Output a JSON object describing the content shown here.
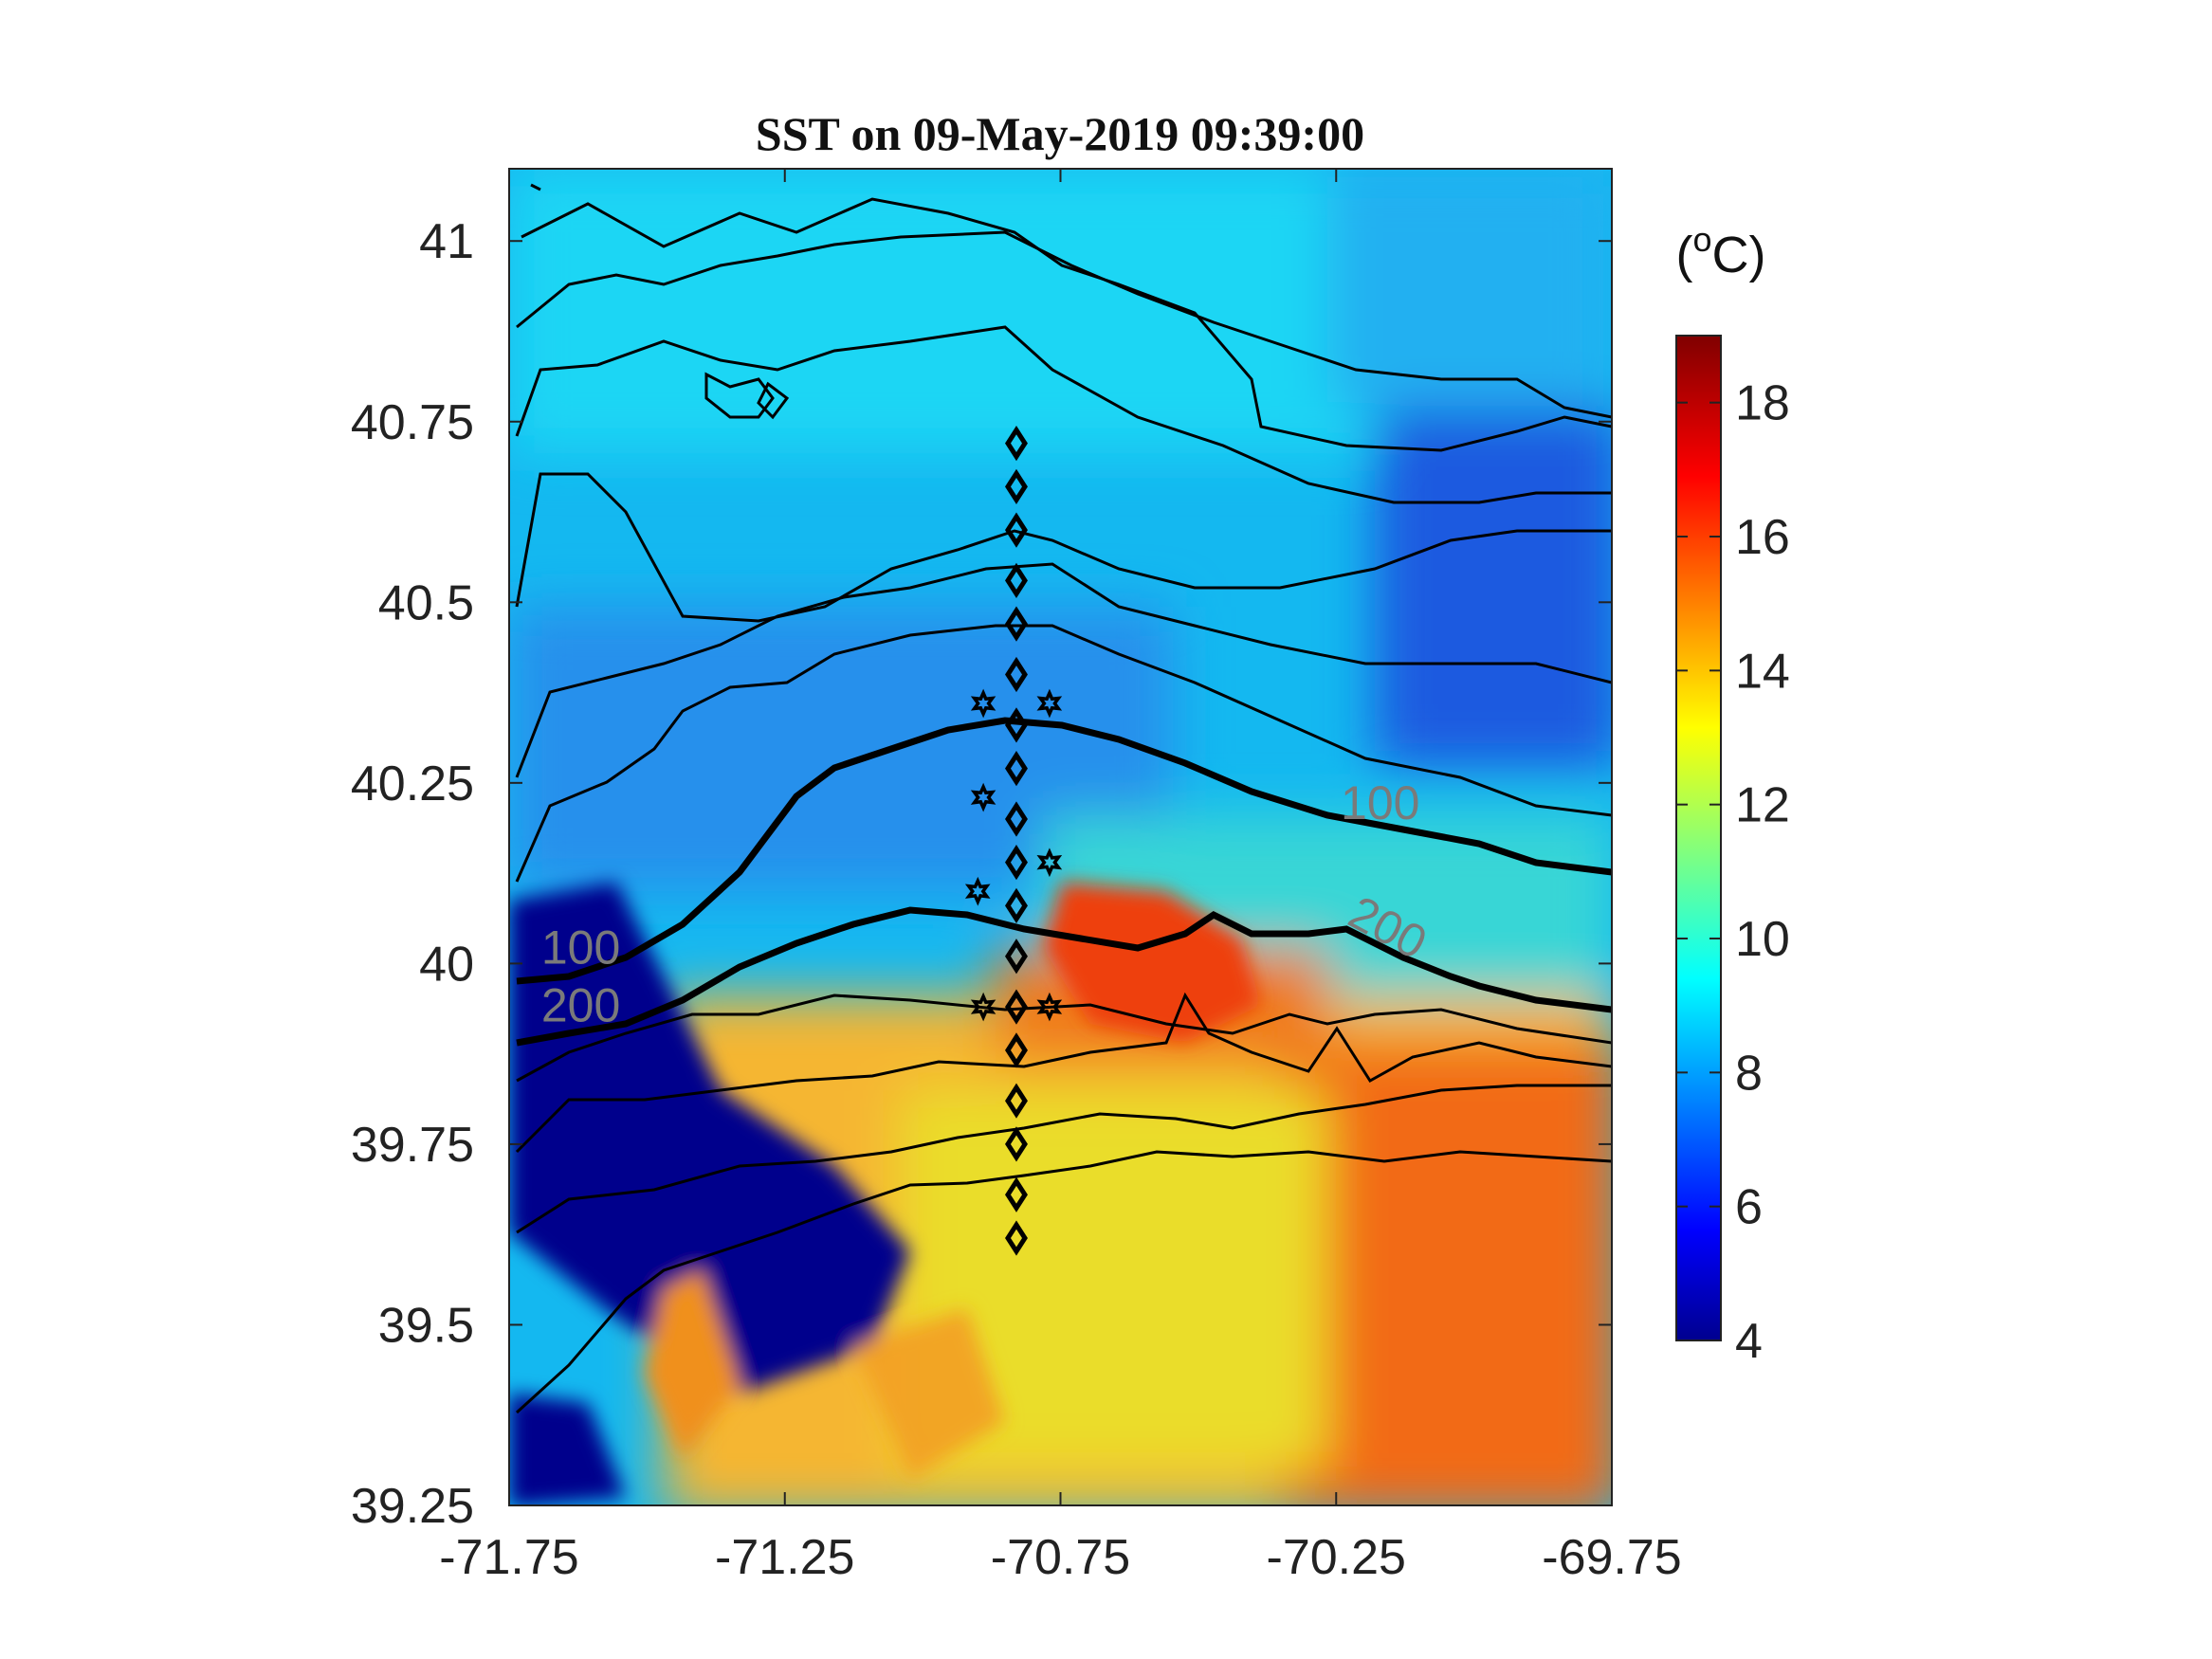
{
  "map": {
    "title": "SST on 09-May-2019 09:39:00",
    "x_ticks": [
      "-71.75",
      "-71.25",
      "-70.75",
      "-70.25",
      "-69.75"
    ],
    "y_ticks": [
      "39.25",
      "39.5",
      "39.75",
      "40",
      "40.25",
      "40.5",
      "40.75",
      "41"
    ],
    "xlim": [
      -71.75,
      -69.75
    ],
    "ylim": [
      39.25,
      41.1
    ]
  },
  "colorbar": {
    "unit_label": "(°C)",
    "ticks": [
      "4",
      "6",
      "8",
      "10",
      "12",
      "14",
      "16",
      "18"
    ],
    "range": [
      4,
      19
    ],
    "colormap": "jet"
  },
  "isobaths": {
    "labels": [
      {
        "text": "100",
        "lon": -71.62,
        "lat": 40.0
      },
      {
        "text": "200",
        "lon": -71.62,
        "lat": 39.92
      },
      {
        "text": "100",
        "lon": -70.17,
        "lat": 40.2
      },
      {
        "text": "200",
        "lon": -70.17,
        "lat": 40.03
      }
    ]
  },
  "stations": {
    "diamonds": [
      {
        "lon": -70.83,
        "lat": 40.72
      },
      {
        "lon": -70.83,
        "lat": 40.66
      },
      {
        "lon": -70.83,
        "lat": 40.6
      },
      {
        "lon": -70.83,
        "lat": 40.53
      },
      {
        "lon": -70.83,
        "lat": 40.47
      },
      {
        "lon": -70.83,
        "lat": 40.4
      },
      {
        "lon": -70.83,
        "lat": 40.33
      },
      {
        "lon": -70.83,
        "lat": 40.27
      },
      {
        "lon": -70.83,
        "lat": 40.2
      },
      {
        "lon": -70.83,
        "lat": 40.14
      },
      {
        "lon": -70.83,
        "lat": 40.08
      },
      {
        "lon": -70.83,
        "lat": 40.01
      },
      {
        "lon": -70.83,
        "lat": 39.94
      },
      {
        "lon": -70.83,
        "lat": 39.88
      },
      {
        "lon": -70.83,
        "lat": 39.81
      },
      {
        "lon": -70.83,
        "lat": 39.75
      },
      {
        "lon": -70.83,
        "lat": 39.68
      },
      {
        "lon": -70.83,
        "lat": 39.62
      }
    ],
    "stars": [
      {
        "lon": -70.89,
        "lat": 40.36
      },
      {
        "lon": -70.77,
        "lat": 40.36
      },
      {
        "lon": -70.89,
        "lat": 40.23
      },
      {
        "lon": -70.9,
        "lat": 40.1
      },
      {
        "lon": -70.77,
        "lat": 40.14
      },
      {
        "lon": -70.89,
        "lat": 39.94
      },
      {
        "lon": -70.77,
        "lat": 39.94
      }
    ]
  }
}
